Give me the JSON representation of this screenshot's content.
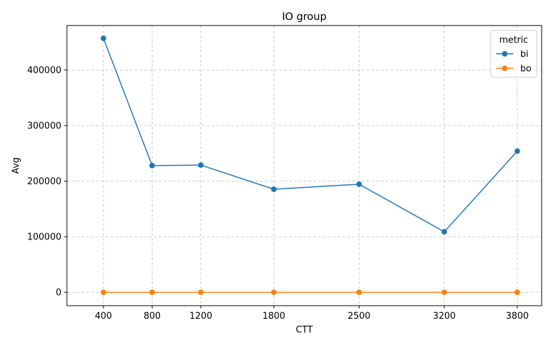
{
  "chart_data": {
    "type": "line",
    "title": "IO group",
    "xlabel": "CTT",
    "ylabel": "Avg",
    "x": [
      400,
      800,
      1200,
      1800,
      2500,
      3200,
      3800
    ],
    "x_tick_labels": [
      "400",
      "800",
      "1200",
      "1800",
      "2500",
      "3200",
      "3800"
    ],
    "xlim": [
      100,
      4000
    ],
    "ylim": [
      -24000,
      480000
    ],
    "y_ticks": [
      0,
      100000,
      200000,
      300000,
      400000
    ],
    "y_tick_labels": [
      "0",
      "100000",
      "200000",
      "300000",
      "400000"
    ],
    "grid": true,
    "legend": {
      "title": "metric",
      "position": "top-right"
    },
    "series": [
      {
        "name": "bi",
        "color": "#1f77b4",
        "values": [
          457000,
          228000,
          229000,
          185500,
          194500,
          109000,
          254000
        ]
      },
      {
        "name": "bo",
        "color": "#ff7f0e",
        "values": [
          100,
          100,
          100,
          100,
          100,
          100,
          100
        ]
      }
    ]
  }
}
